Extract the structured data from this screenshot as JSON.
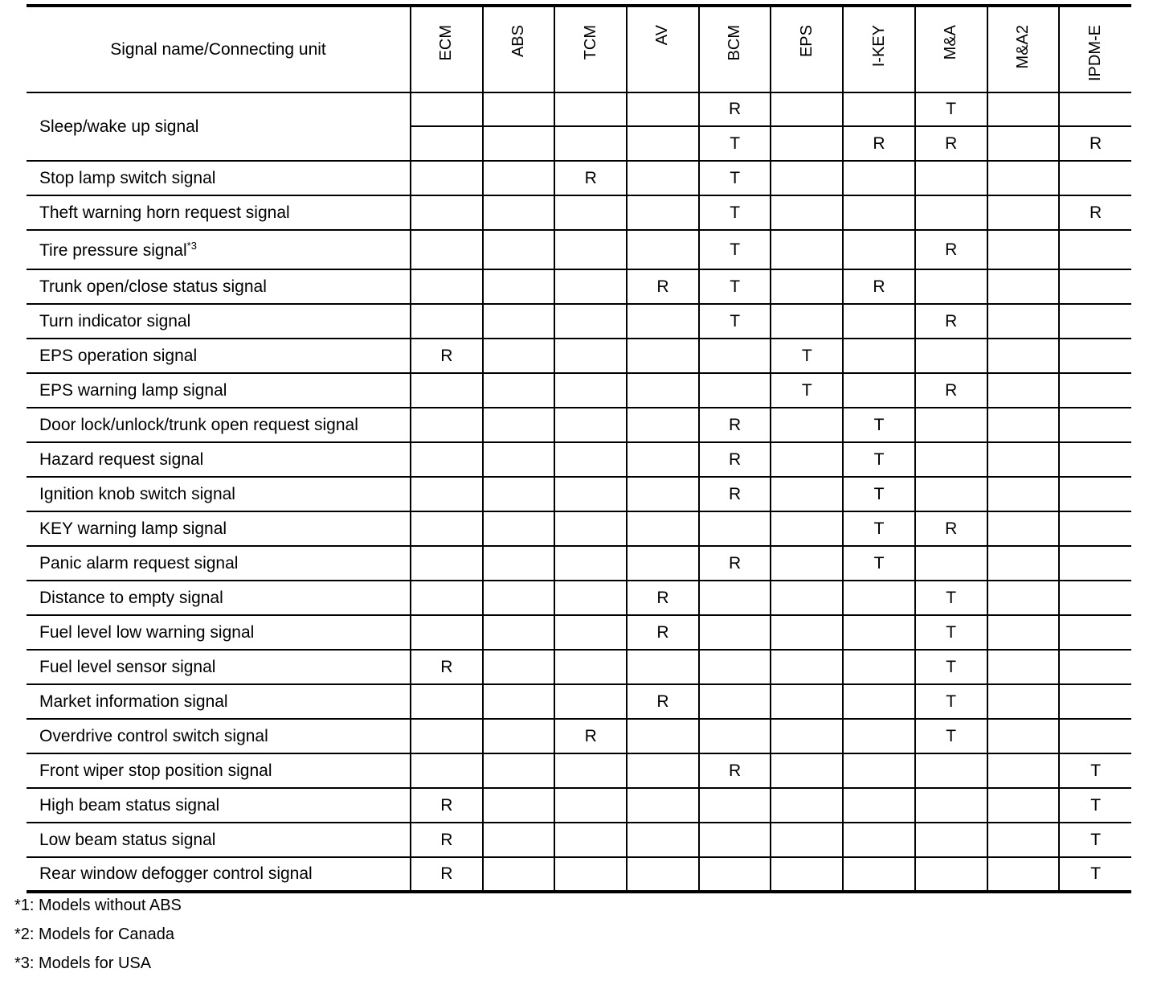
{
  "header": {
    "name_col": "Signal name/Connecting unit",
    "units": [
      "ECM",
      "ABS",
      "TCM",
      "AV",
      "BCM",
      "EPS",
      "I-KEY",
      "M&A",
      "M&A2",
      "IPDM-E"
    ]
  },
  "rows": [
    {
      "name": "Sleep/wake up signal",
      "sup": "",
      "cells": [
        "",
        "",
        "",
        "",
        "R",
        "",
        "",
        "T",
        "",
        ""
      ]
    },
    {
      "name": "",
      "sup": "",
      "cells": [
        "",
        "",
        "",
        "",
        "T",
        "",
        "R",
        "R",
        "",
        "R"
      ]
    },
    {
      "name": "Stop lamp switch signal",
      "sup": "",
      "cells": [
        "",
        "",
        "R",
        "",
        "T",
        "",
        "",
        "",
        "",
        ""
      ]
    },
    {
      "name": "Theft warning horn request signal",
      "sup": "",
      "cells": [
        "",
        "",
        "",
        "",
        "T",
        "",
        "",
        "",
        "",
        "R"
      ]
    },
    {
      "name": "Tire pressure signal",
      "sup": "*3",
      "cells": [
        "",
        "",
        "",
        "",
        "T",
        "",
        "",
        "R",
        "",
        ""
      ]
    },
    {
      "name": "Trunk open/close status signal",
      "sup": "",
      "cells": [
        "",
        "",
        "",
        "R",
        "T",
        "",
        "R",
        "",
        "",
        ""
      ]
    },
    {
      "name": "Turn indicator signal",
      "sup": "",
      "cells": [
        "",
        "",
        "",
        "",
        "T",
        "",
        "",
        "R",
        "",
        ""
      ]
    },
    {
      "name": "EPS operation signal",
      "sup": "",
      "cells": [
        "R",
        "",
        "",
        "",
        "",
        "T",
        "",
        "",
        "",
        ""
      ]
    },
    {
      "name": "EPS warning lamp signal",
      "sup": "",
      "cells": [
        "",
        "",
        "",
        "",
        "",
        "T",
        "",
        "R",
        "",
        ""
      ]
    },
    {
      "name": "Door lock/unlock/trunk open request signal",
      "sup": "",
      "cells": [
        "",
        "",
        "",
        "",
        "R",
        "",
        "T",
        "",
        "",
        ""
      ]
    },
    {
      "name": "Hazard request signal",
      "sup": "",
      "cells": [
        "",
        "",
        "",
        "",
        "R",
        "",
        "T",
        "",
        "",
        ""
      ]
    },
    {
      "name": "Ignition knob switch signal",
      "sup": "",
      "cells": [
        "",
        "",
        "",
        "",
        "R",
        "",
        "T",
        "",
        "",
        ""
      ]
    },
    {
      "name": "KEY warning lamp signal",
      "sup": "",
      "cells": [
        "",
        "",
        "",
        "",
        "",
        "",
        "T",
        "R",
        "",
        ""
      ]
    },
    {
      "name": "Panic alarm request signal",
      "sup": "",
      "cells": [
        "",
        "",
        "",
        "",
        "R",
        "",
        "T",
        "",
        "",
        ""
      ]
    },
    {
      "name": "Distance to empty signal",
      "sup": "",
      "cells": [
        "",
        "",
        "",
        "R",
        "",
        "",
        "",
        "T",
        "",
        ""
      ]
    },
    {
      "name": "Fuel level low warning signal",
      "sup": "",
      "cells": [
        "",
        "",
        "",
        "R",
        "",
        "",
        "",
        "T",
        "",
        ""
      ]
    },
    {
      "name": "Fuel level sensor signal",
      "sup": "",
      "cells": [
        "R",
        "",
        "",
        "",
        "",
        "",
        "",
        "T",
        "",
        ""
      ]
    },
    {
      "name": "Market information signal",
      "sup": "",
      "cells": [
        "",
        "",
        "",
        "R",
        "",
        "",
        "",
        "T",
        "",
        ""
      ]
    },
    {
      "name": "Overdrive control switch signal",
      "sup": "",
      "cells": [
        "",
        "",
        "R",
        "",
        "",
        "",
        "",
        "T",
        "",
        ""
      ]
    },
    {
      "name": "Front wiper stop position signal",
      "sup": "",
      "cells": [
        "",
        "",
        "",
        "",
        "R",
        "",
        "",
        "",
        "",
        "T"
      ]
    },
    {
      "name": "High beam status signal",
      "sup": "",
      "cells": [
        "R",
        "",
        "",
        "",
        "",
        "",
        "",
        "",
        "",
        "T"
      ]
    },
    {
      "name": "Low beam status signal",
      "sup": "",
      "cells": [
        "R",
        "",
        "",
        "",
        "",
        "",
        "",
        "",
        "",
        "T"
      ]
    },
    {
      "name": "Rear window defogger control signal",
      "sup": "",
      "cells": [
        "R",
        "",
        "",
        "",
        "",
        "",
        "",
        "",
        "",
        "T"
      ]
    }
  ],
  "footnotes": [
    "*1: Models without ABS",
    "*2: Models for Canada",
    "*3: Models for USA"
  ]
}
